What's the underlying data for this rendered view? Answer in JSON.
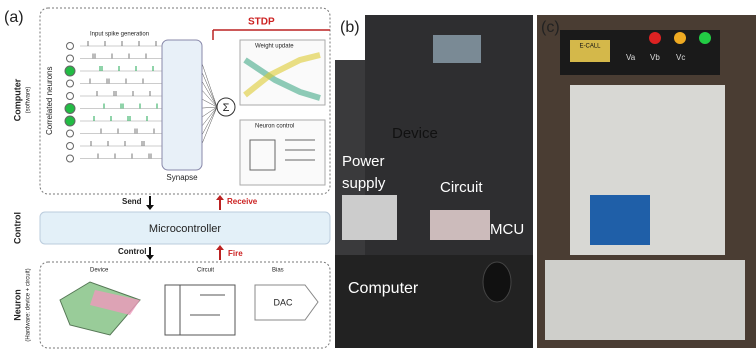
{
  "panel_a": {
    "label": "(a)",
    "stdp": "STDP",
    "input_spike_generation": "Input spike generation",
    "correlated_neurons": "Correlated neurons",
    "synapse": "Synapse",
    "sum_symbol": "Σ",
    "weight_update": "Weight update",
    "neuron_control": "Neuron control",
    "computer": {
      "title": "Computer",
      "subtitle": "(software)"
    },
    "send": "Send",
    "receive": "Receive",
    "control": {
      "title": "Control",
      "box": "Microcontroller"
    },
    "control_arrow": "Control",
    "fire": "Fire",
    "neuron": {
      "title": "Neuron",
      "subtitle": "(Hardware: device + circuit)",
      "device": "Device",
      "circuit": "Circuit",
      "bias": "Bias",
      "dac": "DAC"
    }
  },
  "panel_b": {
    "label": "(b)",
    "device": "Device",
    "power_supply": [
      "Power",
      "supply"
    ],
    "circuit": "Circuit",
    "mcu": "MCU",
    "computer": "Computer"
  },
  "panel_c": {
    "label": "(c)",
    "brand": "E-CALL",
    "terminals": [
      "Va",
      "Vb",
      "Vc"
    ]
  }
}
